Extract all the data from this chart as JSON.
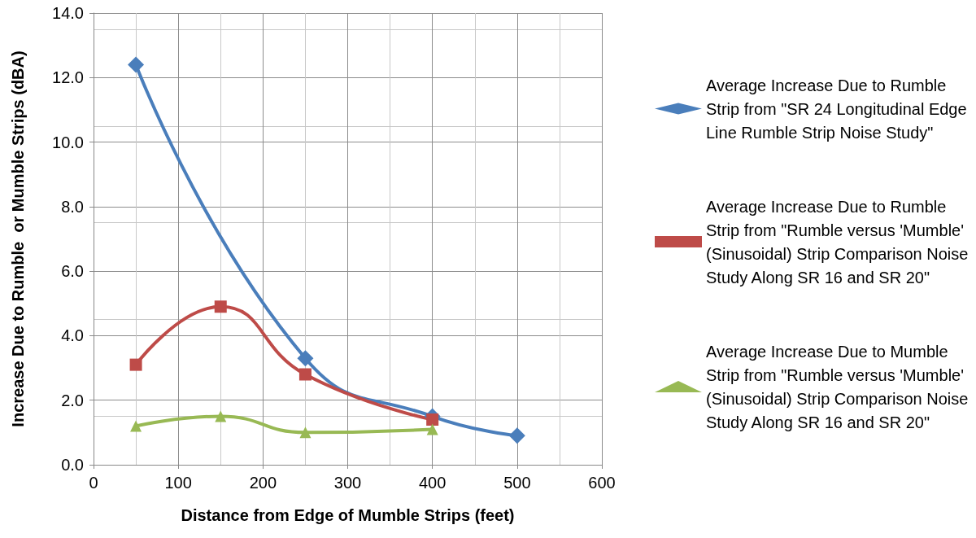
{
  "chart_data": {
    "type": "line",
    "xlabel": "Distance from Edge of Mumble Strips (feet)",
    "ylabel": "Increase Due to Rumble  or Mumble Strips (dBA)",
    "xlim": [
      0,
      600
    ],
    "xticks": [
      0,
      100,
      200,
      300,
      400,
      500,
      600
    ],
    "ylim": [
      0,
      14
    ],
    "yticks": [
      {
        "value": 0,
        "label": "0.0"
      },
      {
        "value": 2,
        "label": "2.0"
      },
      {
        "value": 4,
        "label": "4.0"
      },
      {
        "value": 6,
        "label": "6.0"
      },
      {
        "value": 8,
        "label": "8.0"
      },
      {
        "value": 10,
        "label": "10.0"
      },
      {
        "value": 12,
        "label": "12.0"
      },
      {
        "value": 14,
        "label": "14.0"
      }
    ],
    "grid": true,
    "legend": "right",
    "line_style": "solid",
    "series": [
      {
        "name": "Average Increase Due to Rumble Strip from \"SR 24 Longitudinal Edge Line Rumble Strip Noise Study\"",
        "color": "#4a7ebb",
        "marker": "diamond",
        "x": [
          50,
          250,
          400,
          500
        ],
        "values": [
          12.4,
          3.3,
          1.5,
          0.9
        ]
      },
      {
        "name": "Average Increase Due to Rumble Strip from \"Rumble versus 'Mumble' (Sinusoidal) Strip Comparison Noise Study Along SR 16 and SR 20\"",
        "color": "#be4b48",
        "marker": "square",
        "x": [
          50,
          150,
          250,
          400
        ],
        "values": [
          3.1,
          4.9,
          2.8,
          1.4
        ]
      },
      {
        "name": "Average Increase Due to Mumble Strip from \"Rumble versus 'Mumble' (Sinusoidal) Strip Comparison Noise Study Along SR 16 and SR 20\"",
        "color": "#98b954",
        "marker": "triangle",
        "x": [
          50,
          150,
          250,
          400
        ],
        "values": [
          1.2,
          1.5,
          1.0,
          1.1
        ]
      }
    ]
  }
}
